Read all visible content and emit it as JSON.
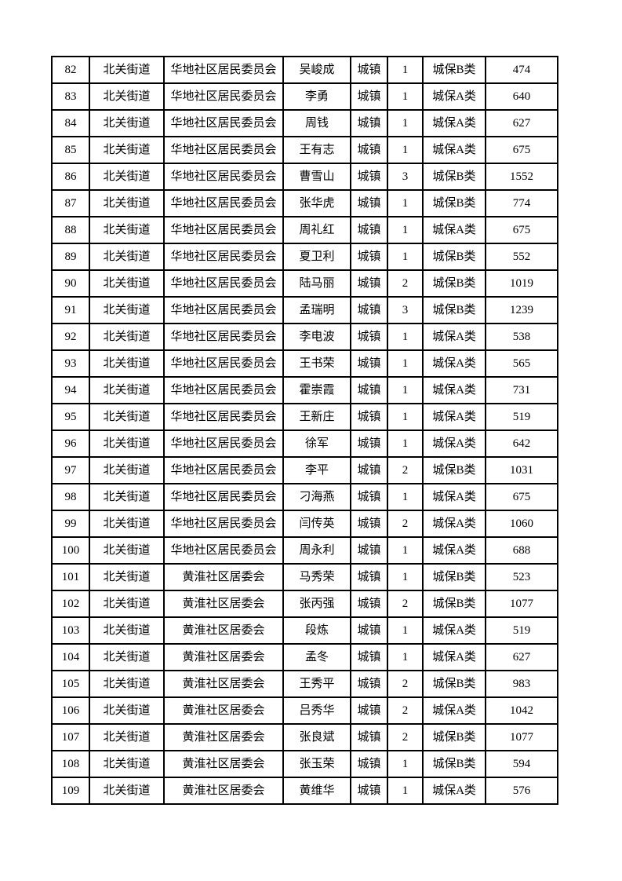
{
  "page": {
    "background_color": "#ffffff",
    "border_color": "#000000",
    "text_color": "#000000"
  },
  "table": {
    "column_keys": [
      "serial-no",
      "street",
      "community",
      "name",
      "residence-type",
      "person-count",
      "insurance-category",
      "amount"
    ],
    "rows": [
      [
        "82",
        "北关街道",
        "华地社区居民委员会",
        "吴峻成",
        "城镇",
        "1",
        "城保B类",
        "474"
      ],
      [
        "83",
        "北关街道",
        "华地社区居民委员会",
        "李勇",
        "城镇",
        "1",
        "城保A类",
        "640"
      ],
      [
        "84",
        "北关街道",
        "华地社区居民委员会",
        "周钱",
        "城镇",
        "1",
        "城保A类",
        "627"
      ],
      [
        "85",
        "北关街道",
        "华地社区居民委员会",
        "王有志",
        "城镇",
        "1",
        "城保A类",
        "675"
      ],
      [
        "86",
        "北关街道",
        "华地社区居民委员会",
        "曹雪山",
        "城镇",
        "3",
        "城保B类",
        "1552"
      ],
      [
        "87",
        "北关街道",
        "华地社区居民委员会",
        "张华虎",
        "城镇",
        "1",
        "城保B类",
        "774"
      ],
      [
        "88",
        "北关街道",
        "华地社区居民委员会",
        "周礼红",
        "城镇",
        "1",
        "城保A类",
        "675"
      ],
      [
        "89",
        "北关街道",
        "华地社区居民委员会",
        "夏卫利",
        "城镇",
        "1",
        "城保B类",
        "552"
      ],
      [
        "90",
        "北关街道",
        "华地社区居民委员会",
        "陆马丽",
        "城镇",
        "2",
        "城保B类",
        "1019"
      ],
      [
        "91",
        "北关街道",
        "华地社区居民委员会",
        "孟瑞明",
        "城镇",
        "3",
        "城保B类",
        "1239"
      ],
      [
        "92",
        "北关街道",
        "华地社区居民委员会",
        "李电波",
        "城镇",
        "1",
        "城保A类",
        "538"
      ],
      [
        "93",
        "北关街道",
        "华地社区居民委员会",
        "王书荣",
        "城镇",
        "1",
        "城保A类",
        "565"
      ],
      [
        "94",
        "北关街道",
        "华地社区居民委员会",
        "霍崇霞",
        "城镇",
        "1",
        "城保A类",
        "731"
      ],
      [
        "95",
        "北关街道",
        "华地社区居民委员会",
        "王新庄",
        "城镇",
        "1",
        "城保A类",
        "519"
      ],
      [
        "96",
        "北关街道",
        "华地社区居民委员会",
        "徐军",
        "城镇",
        "1",
        "城保A类",
        "642"
      ],
      [
        "97",
        "北关街道",
        "华地社区居民委员会",
        "李平",
        "城镇",
        "2",
        "城保B类",
        "1031"
      ],
      [
        "98",
        "北关街道",
        "华地社区居民委员会",
        "刁海燕",
        "城镇",
        "1",
        "城保A类",
        "675"
      ],
      [
        "99",
        "北关街道",
        "华地社区居民委员会",
        "闫传英",
        "城镇",
        "2",
        "城保A类",
        "1060"
      ],
      [
        "100",
        "北关街道",
        "华地社区居民委员会",
        "周永利",
        "城镇",
        "1",
        "城保A类",
        "688"
      ],
      [
        "101",
        "北关街道",
        "黄淮社区居委会",
        "马秀荣",
        "城镇",
        "1",
        "城保B类",
        "523"
      ],
      [
        "102",
        "北关街道",
        "黄淮社区居委会",
        "张丙强",
        "城镇",
        "2",
        "城保B类",
        "1077"
      ],
      [
        "103",
        "北关街道",
        "黄淮社区居委会",
        "段炼",
        "城镇",
        "1",
        "城保A类",
        "519"
      ],
      [
        "104",
        "北关街道",
        "黄淮社区居委会",
        "孟冬",
        "城镇",
        "1",
        "城保A类",
        "627"
      ],
      [
        "105",
        "北关街道",
        "黄淮社区居委会",
        "王秀平",
        "城镇",
        "2",
        "城保B类",
        "983"
      ],
      [
        "106",
        "北关街道",
        "黄淮社区居委会",
        "吕秀华",
        "城镇",
        "2",
        "城保A类",
        "1042"
      ],
      [
        "107",
        "北关街道",
        "黄淮社区居委会",
        "张良斌",
        "城镇",
        "2",
        "城保B类",
        "1077"
      ],
      [
        "108",
        "北关街道",
        "黄淮社区居委会",
        "张玉荣",
        "城镇",
        "1",
        "城保B类",
        "594"
      ],
      [
        "109",
        "北关街道",
        "黄淮社区居委会",
        "黄维华",
        "城镇",
        "1",
        "城保A类",
        "576"
      ]
    ]
  }
}
